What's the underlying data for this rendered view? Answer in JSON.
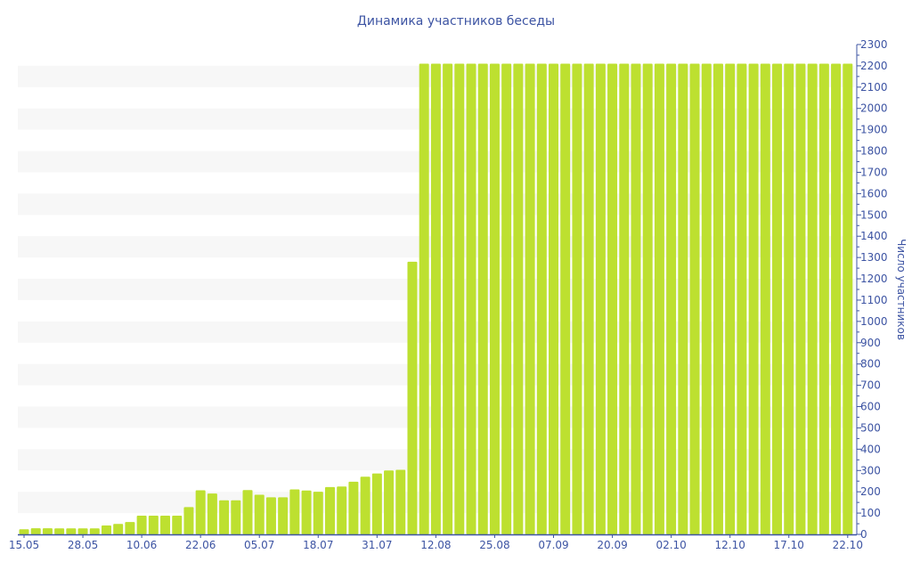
{
  "chart_data": {
    "type": "bar",
    "title": "Динамика участников беседы",
    "ylabel": "Число участников",
    "xlabel": "",
    "ylim": [
      0,
      2300
    ],
    "y_ticks": [
      0,
      100,
      200,
      300,
      400,
      500,
      600,
      700,
      800,
      900,
      1000,
      1100,
      1200,
      1300,
      1400,
      1500,
      1600,
      1700,
      1800,
      1900,
      2000,
      2100,
      2200,
      2300
    ],
    "y_axis_position": "right",
    "x_tick_labels": [
      "15.05",
      "28.05",
      "10.06",
      "22.06",
      "05.07",
      "18.07",
      "31.07",
      "12.08",
      "25.08",
      "07.09",
      "20.09",
      "02.10",
      "12.10",
      "17.10",
      "22.10"
    ],
    "x_tick_every_n_bars": 5,
    "grid": "alternating horizontal bands",
    "bar_color": "#bde030",
    "text_color": "#3d54a3",
    "values": [
      24,
      29,
      29,
      28,
      28,
      28,
      28,
      42,
      49,
      58,
      88,
      88,
      88,
      88,
      128,
      207,
      192,
      160,
      160,
      208,
      186,
      174,
      174,
      211,
      206,
      200,
      222,
      225,
      247,
      271,
      286,
      300,
      303,
      1280,
      2210,
      2210,
      2210,
      2210,
      2210,
      2210,
      2210,
      2210,
      2210,
      2210,
      2210,
      2210,
      2210,
      2210,
      2210,
      2210,
      2210,
      2210,
      2210,
      2210,
      2210,
      2210,
      2210,
      2210,
      2210,
      2210,
      2210,
      2210,
      2210,
      2210,
      2210,
      2210,
      2210,
      2210,
      2210,
      2210,
      2210
    ]
  }
}
